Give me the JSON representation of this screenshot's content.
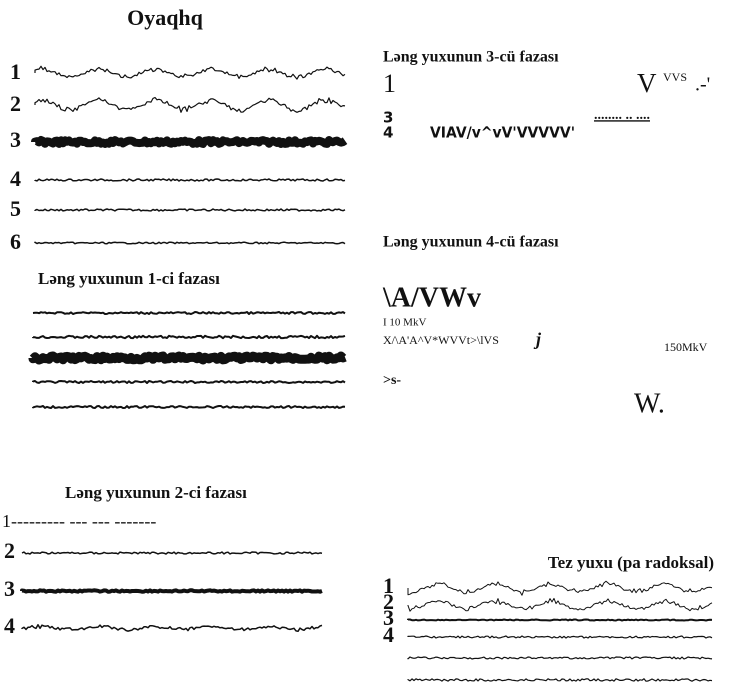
{
  "awake": {
    "title": "Oyaqhq",
    "labels": [
      "1",
      "2",
      "3",
      "4",
      "5",
      "6"
    ]
  },
  "phase1": {
    "title": "Ləng yuxunun 1-ci fazası"
  },
  "phase2": {
    "title": "Ləng yuxunun 2-ci fazası",
    "first_line": "1--------- --- --- -------",
    "labels": [
      "2",
      "3",
      "4"
    ]
  },
  "phase3": {
    "title": "Ləng yuxunun 3-cü fazası",
    "label_1": "1",
    "trace_1": "V",
    "superscript": "VVS",
    "tail": ".-'",
    "labels": [
      "3",
      "4"
    ],
    "trace_4": "VIAV/v^vV'VVVVV'",
    "dots": "........ .. ...."
  },
  "phase4": {
    "title": "Ləng yuxunun 4-cü fazası",
    "trace_1": "\\A/VWv",
    "scale_1": "I 10 MkV",
    "trace_2": "X/\\A'A^V*WVVt>\\lVS",
    "trace_2_end": "j",
    "scale_2": "150MkV",
    "trace_3": ">s-",
    "trace_4": "W."
  },
  "rem": {
    "title": "Tez yuxu (pa radoksal)",
    "labels": [
      "1",
      "2",
      "3",
      "4"
    ]
  }
}
